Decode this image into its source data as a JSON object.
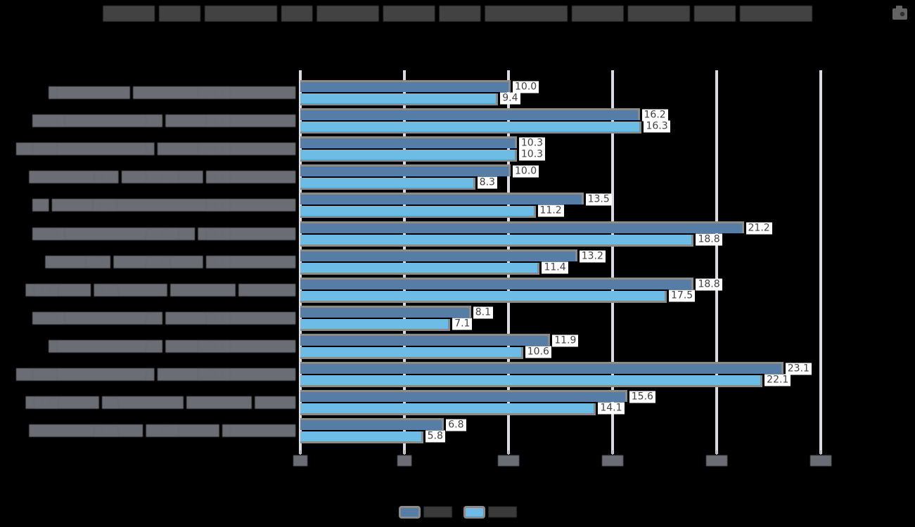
{
  "canvas": {
    "background": "#000000"
  },
  "title": {
    "display": "█████ ████ ███████ ███ ██████ █████ ████ ████████ █████ ██████ ████ ███████",
    "legible": false,
    "color": "#424242"
  },
  "toolbox": {
    "icon": "save-image-camera-icon",
    "color": "#636363"
  },
  "chart_data": {
    "type": "bar",
    "orientation": "horizontal",
    "grid": true,
    "grid_color": "#d9dae2",
    "bar_border_color": "#8b8b8b",
    "value_label_style": {
      "background": "#ffffff",
      "color": "#3f3f3f"
    },
    "axis_label_color": "#6a6d74",
    "x_axis": {
      "min": 0,
      "max": 25,
      "interval": 5,
      "ticks": [
        0,
        5,
        10,
        15,
        20,
        25
      ],
      "ticks_display": [
        "██",
        "██",
        "███",
        "███",
        "███",
        "███"
      ],
      "legible": false
    },
    "categories_legible": false,
    "categories_display": [
      "██████████ ████████████████████",
      "████████████████ ████████████████",
      "█████████████████ █████████████████",
      "███████████ ██████████ ███████████",
      "██ ██████████████████████████████",
      "████████████████████ ████████████",
      "████████ ███████████ ███████████",
      "████████ █████████ ████████ ███████",
      "████████████████ ████████████████",
      "██████████████ ████████████████",
      "█████████████████ █████████████████",
      "█████████ ██████████ ████████ █████",
      "██████████████ █████████ █████████"
    ],
    "series": [
      {
        "name_display": "████",
        "legible": false,
        "color": "#567da6",
        "values": [
          10.0,
          16.2,
          10.3,
          10.0,
          13.5,
          21.2,
          13.2,
          18.8,
          8.1,
          11.9,
          23.1,
          15.6,
          6.8
        ]
      },
      {
        "name_display": "████",
        "legible": false,
        "color": "#6dbce6",
        "values": [
          9.4,
          16.3,
          10.3,
          8.3,
          11.2,
          18.8,
          11.4,
          17.5,
          7.1,
          10.6,
          22.1,
          14.1,
          5.8
        ]
      }
    ],
    "value_format": "one_decimal"
  },
  "legend": {
    "items": [
      {
        "label_display": "████",
        "legible": false,
        "color": "#567da6"
      },
      {
        "label_display": "████",
        "legible": false,
        "color": "#6dbce6"
      }
    ],
    "text_color": "#3a3a3a"
  }
}
